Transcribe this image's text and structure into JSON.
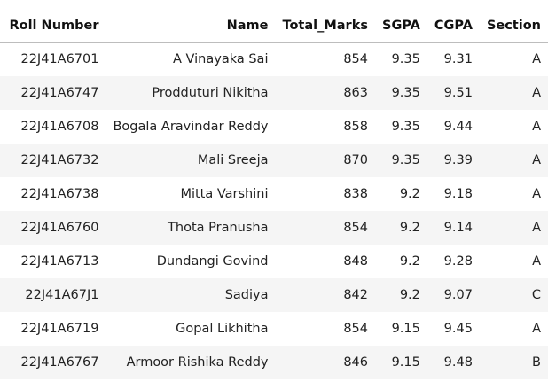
{
  "table": {
    "columns": [
      "Roll Number",
      "Name",
      "Total_Marks",
      "SGPA",
      "CGPA",
      "Section"
    ],
    "rows": [
      [
        "22J41A6701",
        "A Vinayaka Sai",
        "854",
        "9.35",
        "9.31",
        "A"
      ],
      [
        "22J41A6747",
        "Prodduturi Nikitha",
        "863",
        "9.35",
        "9.51",
        "A"
      ],
      [
        "22J41A6708",
        "Bogala Aravindar Reddy",
        "858",
        "9.35",
        "9.44",
        "A"
      ],
      [
        "22J41A6732",
        "Mali Sreeja",
        "870",
        "9.35",
        "9.39",
        "A"
      ],
      [
        "22J41A6738",
        "Mitta Varshini",
        "838",
        "9.2",
        "9.18",
        "A"
      ],
      [
        "22J41A6760",
        "Thota Pranusha",
        "854",
        "9.2",
        "9.14",
        "A"
      ],
      [
        "22J41A6713",
        "Dundangi Govind",
        "848",
        "9.2",
        "9.28",
        "A"
      ],
      [
        "22J41A67J1",
        "Sadiya",
        "842",
        "9.2",
        "9.07",
        "C"
      ],
      [
        "22J41A6719",
        "Gopal Likhitha",
        "854",
        "9.15",
        "9.45",
        "A"
      ],
      [
        "22J41A6767",
        "Armoor Rishika Reddy",
        "846",
        "9.15",
        "9.48",
        "B"
      ]
    ]
  }
}
